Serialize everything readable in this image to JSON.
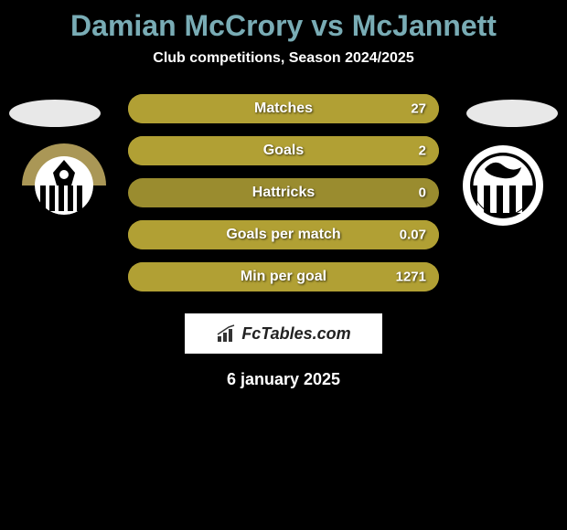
{
  "title": "Damian McCrory vs McJannett",
  "subtitle": "Club competitions, Season 2024/2025",
  "date": "6 january 2025",
  "brand": "FcTables.com",
  "background_color": "#000000",
  "title_color": "#79acb5",
  "title_fontsize": 32,
  "subtitle_fontsize": 16,
  "bar_base_color": "#9a8c2f",
  "player1_color": "#b1a034",
  "player2_color": "#9a8c2f",
  "bars": [
    {
      "label": "Matches",
      "left_value": "",
      "right_value": "27",
      "left_pct": 0,
      "right_pct": 100
    },
    {
      "label": "Goals",
      "left_value": "",
      "right_value": "2",
      "left_pct": 0,
      "right_pct": 100
    },
    {
      "label": "Hattricks",
      "left_value": "",
      "right_value": "0",
      "left_pct": 0,
      "right_pct": 0
    },
    {
      "label": "Goals per match",
      "left_value": "",
      "right_value": "0.07",
      "left_pct": 0,
      "right_pct": 100
    },
    {
      "label": "Min per goal",
      "left_value": "",
      "right_value": "1271",
      "left_pct": 0,
      "right_pct": 100
    }
  ],
  "club_left": {
    "name": "Notts County FC",
    "badge_bg_top": "#aa9756",
    "badge_bg_bottom": "#ffffff",
    "accent": "#000000"
  },
  "club_right": {
    "name": "Grimsby Town FC",
    "badge_bg_top": "#ffffff",
    "badge_bg_bottom": "#000000",
    "accent": "#000000"
  }
}
